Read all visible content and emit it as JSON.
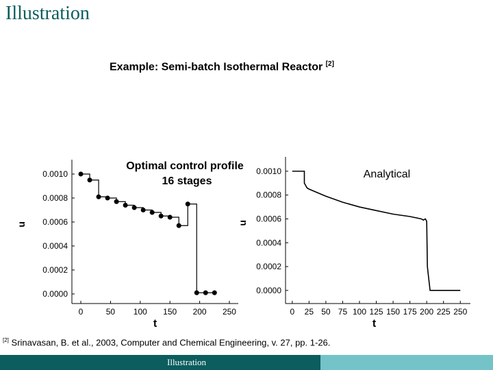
{
  "slide": {
    "title": "Illustration",
    "subtitle": "Example: Semi-batch Isothermal Reactor",
    "subtitle_ref": "[2]",
    "reference_mark": "[2]",
    "reference": "Srinavasan, B. et al., 2003, Computer and Chemical Engineering, v. 27, pp. 1-26.",
    "footer": "Illustration",
    "colors": {
      "title": "#0b5d5e",
      "footer_dark": "#0b5d5e",
      "footer_light": "#74c3c8"
    }
  },
  "chart_data": [
    {
      "type": "scatter",
      "title": "Optimal control profile",
      "subtitle": "16 stages",
      "xlabel": "t",
      "ylabel": "u",
      "xlim": [
        -15,
        265
      ],
      "ylim": [
        -8e-05,
        0.00112
      ],
      "xticks": [
        "0",
        "50",
        "100",
        "150",
        "200",
        "250"
      ],
      "xtick_values": [
        0,
        50,
        100,
        150,
        200,
        250
      ],
      "yticks": [
        "0.0000",
        "0.0002",
        "0.0004",
        "0.0006",
        "0.0008",
        "0.0010"
      ],
      "ytick_values": [
        0,
        0.0002,
        0.0004,
        0.0006,
        0.0008,
        0.001
      ],
      "series": [
        {
          "style": "piecewise-constant with markers",
          "x": [
            0,
            15,
            30,
            45,
            60,
            75,
            90,
            105,
            120,
            135,
            150,
            165,
            180,
            195,
            210,
            225
          ],
          "y": [
            0.001,
            0.00095,
            0.00081,
            0.0008,
            0.00077,
            0.00074,
            0.00072,
            0.0007,
            0.00068,
            0.00065,
            0.00064,
            0.00057,
            0.00075,
            1e-05,
            1e-05,
            1e-05
          ]
        }
      ]
    },
    {
      "type": "line",
      "title": "Analytical",
      "xlabel": "t",
      "ylabel": "u",
      "xlim": [
        -10,
        265
      ],
      "ylim": [
        -0.00011,
        0.00112
      ],
      "xticks": [
        "0",
        "25",
        "50",
        "75",
        "100",
        "125",
        "150",
        "175",
        "200",
        "225",
        "250"
      ],
      "xtick_values": [
        0,
        25,
        50,
        75,
        100,
        125,
        150,
        175,
        200,
        225,
        250
      ],
      "yticks": [
        "0.0000",
        "0.0002",
        "0.0004",
        "0.0006",
        "0.0008",
        "0.0010"
      ],
      "ytick_values": [
        0,
        0.0002,
        0.0004,
        0.0006,
        0.0008,
        0.001
      ],
      "series": [
        {
          "x": [
            0,
            18,
            18,
            22,
            25,
            50,
            75,
            100,
            125,
            150,
            175,
            192,
            195,
            198,
            200,
            201,
            205,
            250
          ],
          "y": [
            0.001,
            0.001,
            0.0009,
            0.00086,
            0.00085,
            0.00079,
            0.00074,
            0.0007,
            0.00067,
            0.00064,
            0.00062,
            0.0006,
            0.00059,
            0.0006,
            0.00058,
            0.0002,
            0.0,
            0.0
          ]
        }
      ]
    }
  ]
}
